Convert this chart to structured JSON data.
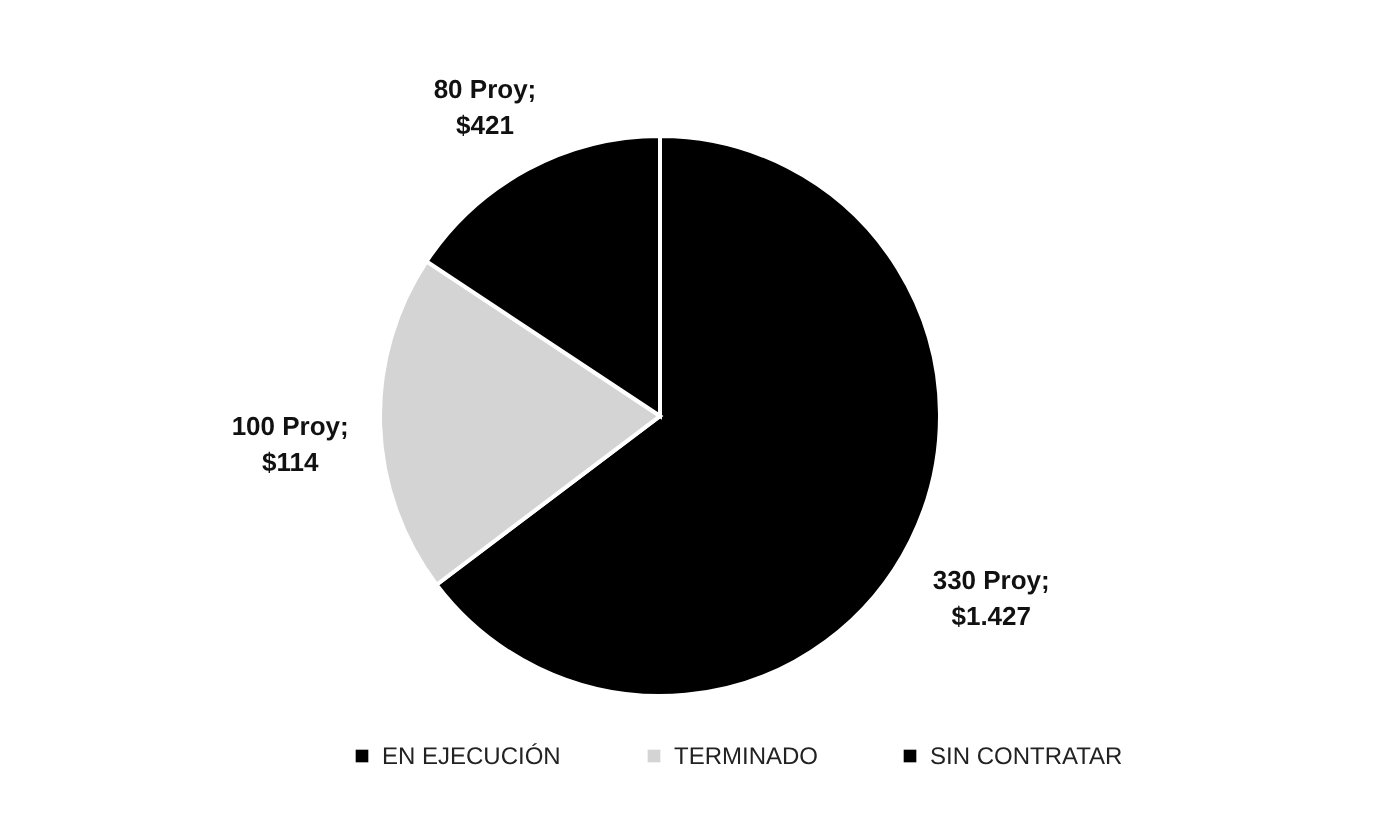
{
  "chart_data": {
    "type": "pie",
    "categories": [
      "EN EJECUCIÓN",
      "TERMINADO",
      "SIN CONTRATAR"
    ],
    "values": [
      330,
      100,
      80
    ],
    "colors": [
      "#000000",
      "#d4d4d4",
      "#000000"
    ],
    "value_labels": [
      "330 Proy; $1.427",
      "100 Proy; $114",
      "80 Proy; $421"
    ],
    "legend": "bottom"
  }
}
